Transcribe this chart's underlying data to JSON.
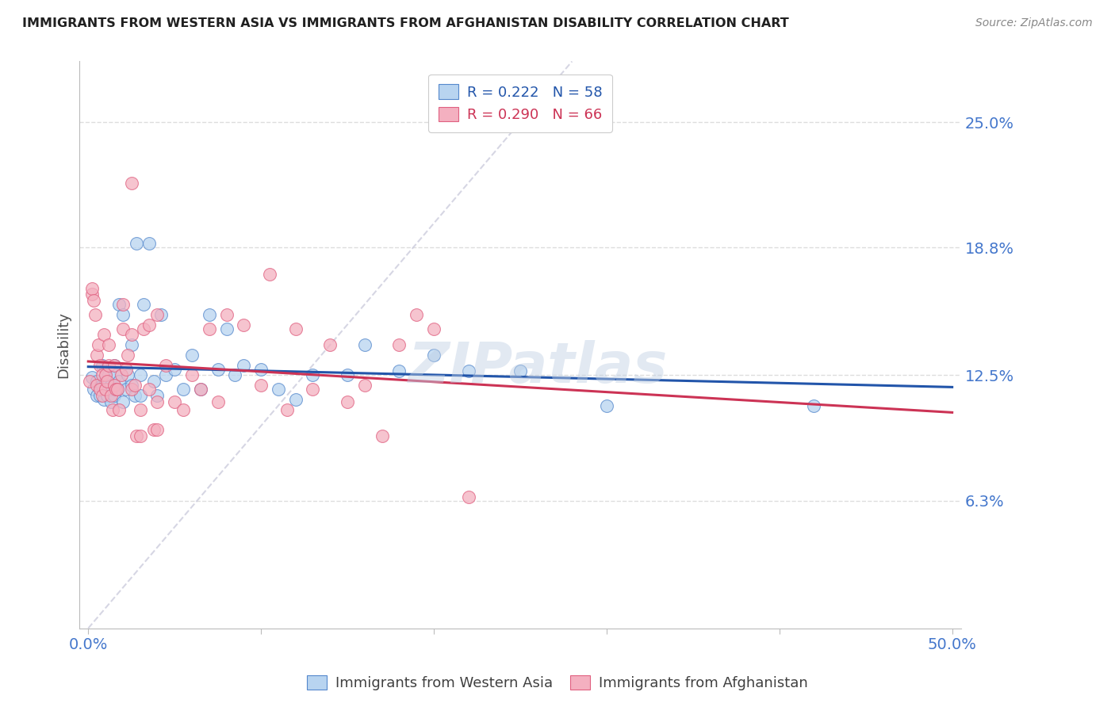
{
  "title": "IMMIGRANTS FROM WESTERN ASIA VS IMMIGRANTS FROM AFGHANISTAN DISABILITY CORRELATION CHART",
  "source": "Source: ZipAtlas.com",
  "ylabel": "Disability",
  "legend_blue_label": "Immigrants from Western Asia",
  "legend_pink_label": "Immigrants from Afghanistan",
  "x_tick_positions": [
    0.0,
    0.1,
    0.2,
    0.3,
    0.4,
    0.5
  ],
  "x_tick_labels": [
    "0.0%",
    "",
    "",
    "",
    "",
    "50.0%"
  ],
  "y_ticks": [
    0.063,
    0.125,
    0.188,
    0.25
  ],
  "y_tick_labels": [
    "6.3%",
    "12.5%",
    "18.8%",
    "25.0%"
  ],
  "xlim": [
    -0.005,
    0.505
  ],
  "ylim": [
    0.0,
    0.28
  ],
  "watermark": "ZIPatlas",
  "blue_fill": "#b8d4f0",
  "blue_edge": "#5588cc",
  "pink_fill": "#f4b0c0",
  "pink_edge": "#e06080",
  "blue_line_color": "#2255aa",
  "pink_line_color": "#cc3355",
  "diagonal_color": "#ccccdd",
  "grid_color": "#dddddd",
  "title_color": "#202020",
  "axis_label_color": "#4477cc",
  "blue_scatter_x": [
    0.002,
    0.003,
    0.005,
    0.005,
    0.007,
    0.008,
    0.008,
    0.009,
    0.01,
    0.01,
    0.011,
    0.012,
    0.012,
    0.013,
    0.013,
    0.015,
    0.015,
    0.016,
    0.017,
    0.018,
    0.018,
    0.02,
    0.02,
    0.022,
    0.023,
    0.025,
    0.025,
    0.027,
    0.028,
    0.03,
    0.03,
    0.032,
    0.035,
    0.038,
    0.04,
    0.042,
    0.045,
    0.05,
    0.055,
    0.06,
    0.065,
    0.07,
    0.075,
    0.08,
    0.085,
    0.09,
    0.1,
    0.11,
    0.12,
    0.13,
    0.15,
    0.16,
    0.18,
    0.2,
    0.22,
    0.25,
    0.3,
    0.42
  ],
  "blue_scatter_y": [
    0.124,
    0.118,
    0.122,
    0.115,
    0.115,
    0.12,
    0.13,
    0.113,
    0.122,
    0.128,
    0.115,
    0.118,
    0.125,
    0.112,
    0.12,
    0.115,
    0.13,
    0.125,
    0.118,
    0.122,
    0.16,
    0.112,
    0.155,
    0.118,
    0.125,
    0.12,
    0.14,
    0.115,
    0.19,
    0.115,
    0.125,
    0.16,
    0.19,
    0.122,
    0.115,
    0.155,
    0.125,
    0.128,
    0.118,
    0.135,
    0.118,
    0.155,
    0.128,
    0.148,
    0.125,
    0.13,
    0.128,
    0.118,
    0.113,
    0.125,
    0.125,
    0.14,
    0.127,
    0.135,
    0.127,
    0.127,
    0.11,
    0.11
  ],
  "pink_scatter_x": [
    0.001,
    0.002,
    0.002,
    0.003,
    0.004,
    0.005,
    0.005,
    0.006,
    0.007,
    0.007,
    0.008,
    0.008,
    0.009,
    0.01,
    0.01,
    0.011,
    0.012,
    0.012,
    0.013,
    0.014,
    0.015,
    0.015,
    0.016,
    0.017,
    0.018,
    0.019,
    0.02,
    0.02,
    0.022,
    0.023,
    0.025,
    0.025,
    0.027,
    0.028,
    0.03,
    0.032,
    0.035,
    0.035,
    0.038,
    0.04,
    0.04,
    0.045,
    0.05,
    0.055,
    0.06,
    0.065,
    0.07,
    0.075,
    0.08,
    0.09,
    0.1,
    0.105,
    0.115,
    0.12,
    0.13,
    0.14,
    0.15,
    0.16,
    0.17,
    0.18,
    0.19,
    0.2,
    0.22,
    0.025,
    0.03,
    0.04
  ],
  "pink_scatter_y": [
    0.122,
    0.165,
    0.168,
    0.162,
    0.155,
    0.12,
    0.135,
    0.14,
    0.118,
    0.13,
    0.115,
    0.125,
    0.145,
    0.118,
    0.125,
    0.122,
    0.13,
    0.14,
    0.115,
    0.108,
    0.12,
    0.13,
    0.118,
    0.118,
    0.108,
    0.125,
    0.148,
    0.16,
    0.128,
    0.135,
    0.118,
    0.145,
    0.12,
    0.095,
    0.108,
    0.148,
    0.118,
    0.15,
    0.098,
    0.112,
    0.155,
    0.13,
    0.112,
    0.108,
    0.125,
    0.118,
    0.148,
    0.112,
    0.155,
    0.15,
    0.12,
    0.175,
    0.108,
    0.148,
    0.118,
    0.14,
    0.112,
    0.12,
    0.095,
    0.14,
    0.155,
    0.148,
    0.065,
    0.22,
    0.095,
    0.098
  ]
}
